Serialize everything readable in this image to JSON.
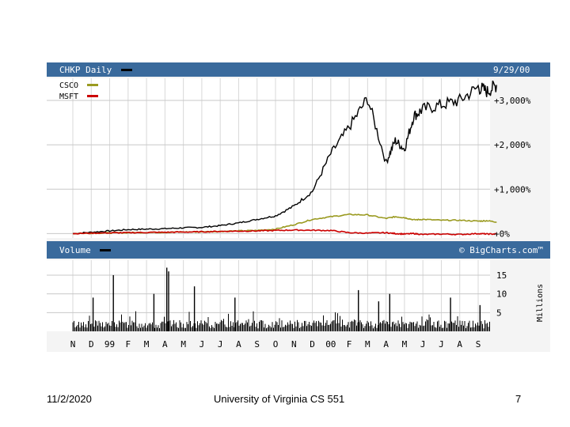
{
  "slide": {
    "date": "11/2/2020",
    "course": "University of Virginia CS 551",
    "page": "7"
  },
  "chart_data": {
    "type": "line",
    "title": "CHKP Daily",
    "date_label": "9/29/00",
    "legend": [
      {
        "name": "CHKP Daily",
        "color": "#000000"
      },
      {
        "name": "CSCO",
        "color": "#9a9a20"
      },
      {
        "name": "MSFT",
        "color": "#cc0000"
      }
    ],
    "legend_placement": "top-left",
    "grid": true,
    "y_unit": "percent change",
    "y_ticks": [
      {
        "value": 3000,
        "label": "+3,000%"
      },
      {
        "value": 2000,
        "label": "+2,000%"
      },
      {
        "value": 1000,
        "label": "+1,000%"
      },
      {
        "value": 0,
        "label": "+0%"
      }
    ],
    "ylim": [
      -100,
      3500
    ],
    "x_ticks": [
      "N",
      "D",
      "99",
      "F",
      "M",
      "A",
      "M",
      "J",
      "J",
      "A",
      "S",
      "O",
      "N",
      "D",
      "00",
      "F",
      "M",
      "A",
      "M",
      "J",
      "J",
      "A",
      "S"
    ],
    "x": [
      0,
      1,
      2,
      3,
      4,
      5,
      6,
      7,
      8,
      9,
      10,
      11,
      12,
      13,
      14,
      15,
      16,
      17,
      17.5,
      18,
      18.5,
      19,
      20,
      21,
      22,
      22.5,
      23
    ],
    "series": [
      {
        "name": "CHKP Daily",
        "color": "#000000",
        "values": [
          0,
          30,
          60,
          90,
          100,
          110,
          130,
          140,
          180,
          240,
          320,
          400,
          620,
          950,
          1800,
          2400,
          3050,
          1600,
          2100,
          1900,
          2650,
          2800,
          2900,
          3000,
          3300,
          3200,
          3350
        ]
      },
      {
        "name": "CSCO",
        "color": "#9a9a20",
        "values": [
          0,
          10,
          15,
          20,
          25,
          30,
          35,
          40,
          50,
          60,
          70,
          100,
          200,
          320,
          380,
          430,
          420,
          340,
          380,
          360,
          310,
          320,
          300,
          300,
          280,
          290,
          260
        ]
      },
      {
        "name": "MSFT",
        "color": "#cc0000",
        "values": [
          0,
          10,
          15,
          20,
          25,
          30,
          35,
          40,
          50,
          55,
          60,
          70,
          80,
          75,
          70,
          20,
          10,
          20,
          0,
          -10,
          0,
          -20,
          -10,
          -20,
          0,
          -10,
          -10
        ]
      }
    ],
    "volume": {
      "label": "Volume",
      "credit": "© BigCharts.com™",
      "unit": "Millions",
      "y_ticks": [
        15,
        10,
        5
      ],
      "ylim": [
        0,
        19
      ],
      "spikes": [
        {
          "x": 1.1,
          "value": 9
        },
        {
          "x": 2.2,
          "value": 15
        },
        {
          "x": 4.4,
          "value": 10
        },
        {
          "x": 5.1,
          "value": 17
        },
        {
          "x": 5.2,
          "value": 16
        },
        {
          "x": 6.6,
          "value": 12
        },
        {
          "x": 8.8,
          "value": 9
        },
        {
          "x": 15.5,
          "value": 11
        },
        {
          "x": 16.6,
          "value": 8
        },
        {
          "x": 17.2,
          "value": 10
        },
        {
          "x": 20.5,
          "value": 9
        },
        {
          "x": 22.1,
          "value": 7
        }
      ]
    }
  }
}
